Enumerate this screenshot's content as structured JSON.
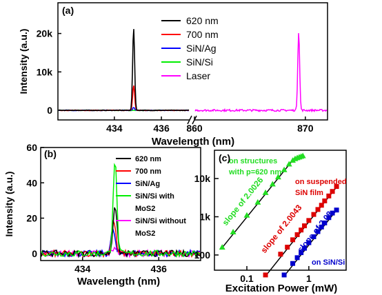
{
  "chart_data": [
    {
      "panel": "(a)",
      "type": "line",
      "xlabel": "Wavelength (nm)",
      "ylabel": "Intensity (a.u.)",
      "x_break": true,
      "xlim_left": [
        431.6,
        437.2
      ],
      "xlim_right": [
        860,
        872
      ],
      "xticks_left": [
        434,
        436
      ],
      "xticks_right": [
        860,
        870
      ],
      "ylim": [
        -2500,
        28000
      ],
      "yticks": [
        0,
        10000,
        20000
      ],
      "ytick_labels": [
        "0",
        "10k",
        "20k"
      ],
      "legend_position": "top-right",
      "series": [
        {
          "name": "620 nm",
          "color": "#000000",
          "peak_x": 434.82,
          "peak_y": 21300,
          "width": 0.06
        },
        {
          "name": "700 nm",
          "color": "#ff0000",
          "peak_x": 434.82,
          "peak_y": 6500,
          "width": 0.06
        },
        {
          "name": "SiN/Ag",
          "color": "#0000ff",
          "peak_x": 434.82,
          "peak_y": 700,
          "width": 0.06
        },
        {
          "name": "SiN/Si",
          "color": "#00ee00",
          "peak_x": null,
          "peak_y": 0,
          "width": 0
        },
        {
          "name": "Laser",
          "color": "#ff00ff",
          "peak_x": 869.4,
          "peak_y": 20500,
          "width": 0.12
        }
      ]
    },
    {
      "panel": "(b)",
      "type": "line",
      "xlabel": "Wavelength (nm)",
      "ylabel": "Intensity (a.u.)",
      "xlim": [
        432.9,
        437.1
      ],
      "xticks": [
        434,
        436
      ],
      "ylim": [
        -4,
        60
      ],
      "yticks": [
        0,
        20,
        40,
        60
      ],
      "legend_position": "top-right",
      "series": [
        {
          "name": "620 nm",
          "color": "#000000",
          "peak_x": 434.85,
          "peak_y": 28,
          "width": 0.07
        },
        {
          "name": "700 nm",
          "color": "#ff0000",
          "peak_x": 434.82,
          "peak_y": 19,
          "width": 0.07
        },
        {
          "name": "SiN/Ag",
          "color": "#0000ff",
          "peak_x": 434.8,
          "peak_y": 14,
          "width": 0.07
        },
        {
          "name": "SiN/Si with MoS2",
          "color": "#00ee00",
          "peak_x": 434.85,
          "peak_y": 53,
          "width": 0.07
        },
        {
          "name": "SiN/Si without MoS2",
          "color": "#ff00ff",
          "peak_x": 434.85,
          "peak_y": 4,
          "width": 0.07
        }
      ],
      "legend_labels": [
        {
          "lines": [
            "620 nm"
          ]
        },
        {
          "lines": [
            "700 nm"
          ]
        },
        {
          "lines": [
            "SiN/Ag"
          ]
        },
        {
          "lines": [
            "SiN/Si with",
            "MoS2"
          ]
        },
        {
          "lines": [
            "SiN/Si without",
            "MoS2"
          ]
        }
      ]
    },
    {
      "panel": "(c)",
      "type": "scatter",
      "x_scale": "log",
      "y_scale": "log",
      "xlabel": "Excitation Power (mW)",
      "ylabel": "",
      "xlim": [
        0.03,
        4
      ],
      "ylim": [
        40,
        55000
      ],
      "xticks": [
        0.1,
        1
      ],
      "xtick_labels": [
        "0.1",
        "1"
      ],
      "yticks": [
        100,
        1000,
        10000
      ],
      "ytick_labels": [
        "100",
        "1k",
        "10k"
      ],
      "series": [
        {
          "name": "on structures with p=620 nm",
          "label_lines": [
            "on structures",
            "with p=620 nm"
          ],
          "color": "#22dd22",
          "marker": "triangle",
          "fit_label": "slope of 2.0026",
          "x": [
            0.04,
            0.06,
            0.1,
            0.15,
            0.2,
            0.26,
            0.32,
            0.4,
            0.48,
            0.55,
            0.6,
            0.65,
            0.7,
            0.75,
            0.8
          ],
          "y": [
            160,
            400,
            1100,
            2400,
            4300,
            7200,
            11000,
            17000,
            24000,
            30000,
            33000,
            35000,
            36500,
            38000,
            39500
          ],
          "fit": [
            [
              0.038,
              140
            ],
            [
              0.6,
              36000
            ]
          ]
        },
        {
          "name": "on suspended SiN film",
          "label_lines": [
            "on suspended",
            "SiN film"
          ],
          "color": "#dd0000",
          "marker": "square",
          "fit_label": "slope of 2.0043",
          "x": [
            0.2,
            0.35,
            0.45,
            0.55,
            0.65,
            0.75,
            0.85,
            1.0,
            1.2,
            1.4,
            1.6,
            1.8,
            2.1,
            2.4,
            2.8
          ],
          "y": [
            30,
            105,
            160,
            250,
            340,
            450,
            580,
            800,
            1150,
            1550,
            2000,
            2600,
            3500,
            4600,
            6200
          ],
          "fit": [
            [
              0.2,
              28
            ],
            [
              2.8,
              6000
            ]
          ]
        },
        {
          "name": "on SiN/Si",
          "label_lines": [
            "on SiN/Si"
          ],
          "color": "#0000cc",
          "marker": "square",
          "fit_label": "slope of 2.08",
          "x": [
            0.4,
            0.55,
            0.65,
            0.75,
            0.85,
            1.0,
            1.2,
            1.4,
            1.6,
            1.8,
            2.1,
            2.4,
            2.8
          ],
          "y": [
            30,
            60,
            85,
            115,
            150,
            210,
            300,
            410,
            540,
            690,
            950,
            1250,
            1500
          ],
          "fit": [
            [
              0.4,
              28
            ],
            [
              2.8,
              1500
            ]
          ]
        }
      ]
    }
  ]
}
